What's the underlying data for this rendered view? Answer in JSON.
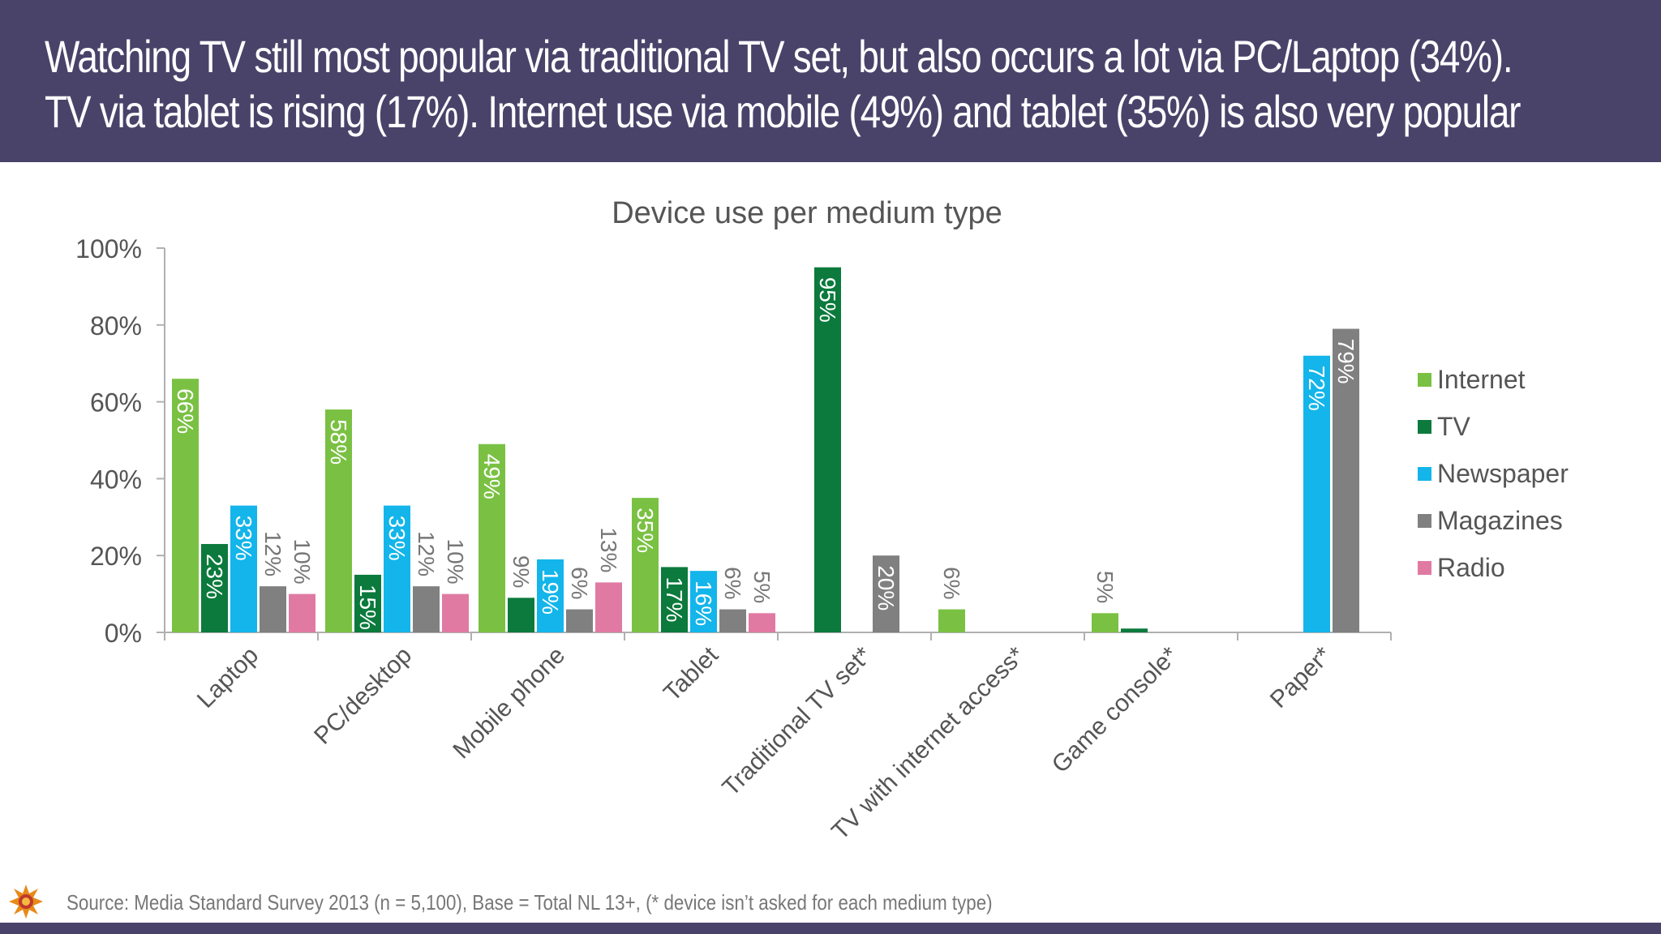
{
  "header": {
    "line1": "Watching TV still most popular via traditional TV set, but also occurs a lot via PC/Laptop (34%).",
    "line2": "TV via tablet is rising (17%). Internet use via mobile (49%) and tablet (35%) is also very popular"
  },
  "footer": {
    "source": "Source: Media Standard Survey 2013 (n =  5,100), Base = Total NL 13+, (* device isn’t asked for each medium type)"
  },
  "logo": {
    "icon": "sun-logo-icon"
  },
  "chart_data": {
    "type": "bar",
    "title": "Device use per medium type",
    "xlabel": "",
    "ylabel": "",
    "ylim": [
      0,
      100
    ],
    "y_ticks": [
      "0%",
      "20%",
      "40%",
      "60%",
      "80%",
      "100%"
    ],
    "grid": false,
    "legend_position": "right",
    "categories": [
      "Laptop",
      "PC/desktop",
      "Mobile phone",
      "Tablet",
      "Traditional TV set*",
      "TV with internet access*",
      "Game console*",
      "Paper*"
    ],
    "series": [
      {
        "name": "Internet",
        "color": "#7ac143",
        "values": [
          66,
          58,
          49,
          35,
          null,
          6,
          5,
          null
        ]
      },
      {
        "name": "TV",
        "color": "#0b7a3c",
        "values": [
          23,
          15,
          9,
          17,
          95,
          null,
          1,
          null
        ]
      },
      {
        "name": "Newspaper",
        "color": "#13b5ea",
        "values": [
          33,
          33,
          19,
          16,
          null,
          null,
          null,
          72
        ]
      },
      {
        "name": "Magazines",
        "color": "#808080",
        "values": [
          12,
          12,
          6,
          6,
          20,
          null,
          null,
          79
        ]
      },
      {
        "name": "Radio",
        "color": "#e07aa3",
        "values": [
          10,
          10,
          13,
          5,
          null,
          null,
          null,
          null
        ]
      }
    ],
    "data_labels": [
      [
        "66%",
        "58%",
        "49%",
        "35%",
        null,
        "6%",
        "5%",
        null
      ],
      [
        "23%",
        "15%",
        "9%",
        "17%",
        "95%",
        null,
        null,
        null
      ],
      [
        "33%",
        "33%",
        "19%",
        "16%",
        null,
        null,
        null,
        "72%"
      ],
      [
        "12%",
        "12%",
        "6%",
        "6%",
        "20%",
        null,
        null,
        "79%"
      ],
      [
        "10%",
        "10%",
        "13%",
        "5%",
        null,
        null,
        null,
        null
      ]
    ]
  }
}
